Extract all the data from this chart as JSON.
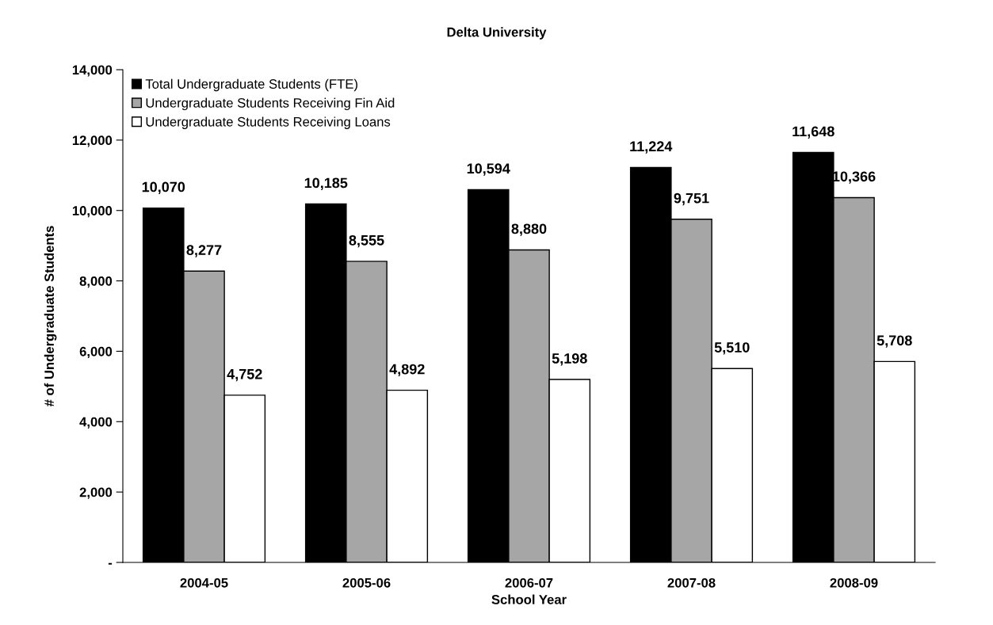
{
  "chart_data": {
    "type": "bar",
    "title": "Delta University",
    "xlabel": "School Year",
    "ylabel": "# of Undergraduate Students",
    "categories": [
      "2004-05",
      "2005-06",
      "2006-07",
      "2007-08",
      "2008-09"
    ],
    "series": [
      {
        "name": "Total Undergraduate Students (FTE)",
        "color": "#000000",
        "values": [
          10070,
          10185,
          10594,
          11224,
          11648
        ],
        "value_labels": [
          "10,070",
          "10,185",
          "10,594",
          "11,224",
          "11,648"
        ]
      },
      {
        "name": "Undergraduate Students Receiving Fin Aid",
        "color": "#a6a6a6",
        "values": [
          8277,
          8555,
          8880,
          9751,
          10366
        ],
        "value_labels": [
          "8,277",
          "8,555",
          "8,880",
          "9,751",
          "10,366"
        ]
      },
      {
        "name": "Undergraduate Students Receiving Loans",
        "color": "#ffffff",
        "values": [
          4752,
          4892,
          5198,
          5510,
          5708
        ],
        "value_labels": [
          "4,752",
          "4,892",
          "5,198",
          "5,510",
          "5,708"
        ]
      }
    ],
    "ylim": [
      0,
      14000
    ],
    "yticks": [
      {
        "value": 0,
        "label": "-"
      },
      {
        "value": 2000,
        "label": "2,000"
      },
      {
        "value": 4000,
        "label": "4,000"
      },
      {
        "value": 6000,
        "label": "6,000"
      },
      {
        "value": 8000,
        "label": "8,000"
      },
      {
        "value": 10000,
        "label": "10,000"
      },
      {
        "value": 12000,
        "label": "12,000"
      },
      {
        "value": 14000,
        "label": "14,000"
      }
    ],
    "grid": false,
    "legend": "top left"
  }
}
